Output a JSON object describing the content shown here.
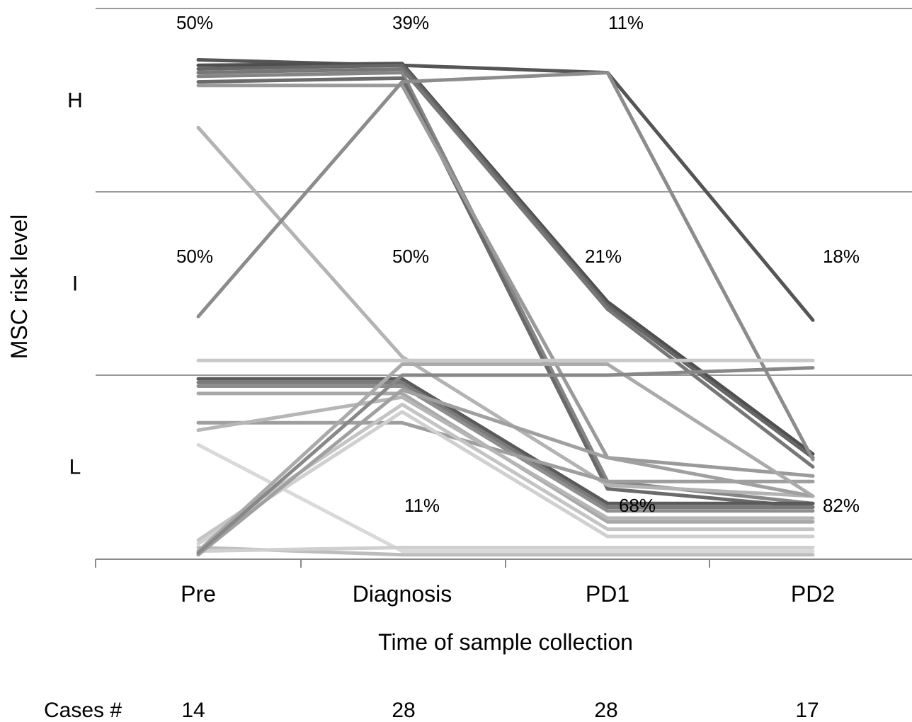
{
  "chart_data": {
    "type": "line",
    "xlabel": "Time of sample collection",
    "ylabel": "MSC risk level",
    "categories": [
      "Pre",
      "Diagnosis",
      "PD1",
      "PD2"
    ],
    "levels": [
      "H",
      "I",
      "L"
    ],
    "grid": true,
    "percent_labels": [
      {
        "category": "Pre",
        "level": "H",
        "text": "50%"
      },
      {
        "category": "Diagnosis",
        "level": "H",
        "text": "39%"
      },
      {
        "category": "PD1",
        "level": "H",
        "text": "11%"
      },
      {
        "category": "Pre",
        "level": "I",
        "text": "50%"
      },
      {
        "category": "Diagnosis",
        "level": "I",
        "text": "50%"
      },
      {
        "category": "PD1",
        "level": "I",
        "text": "21%"
      },
      {
        "category": "PD2",
        "level": "I",
        "text": "18%"
      },
      {
        "category": "Diagnosis",
        "level": "L",
        "text": "11%"
      },
      {
        "category": "PD1",
        "level": "L",
        "text": "68%"
      },
      {
        "category": "PD2",
        "level": "L",
        "text": "82%"
      }
    ],
    "cases_label": "Cases #",
    "cases": [
      14,
      28,
      28,
      17
    ],
    "series": [
      {
        "values": [
          0.28,
          0.31,
          0.35,
          1.7
        ],
        "color": "#555555"
      },
      {
        "values": [
          0.31,
          0.3,
          1.6,
          2.43
        ],
        "color": "#4f4f4f"
      },
      {
        "values": [
          0.33,
          0.31,
          1.62,
          2.45
        ],
        "color": "#666666"
      },
      {
        "values": [
          0.35,
          0.33,
          1.64,
          2.5
        ],
        "color": "#777777"
      },
      {
        "values": [
          0.37,
          0.35,
          2.58,
          2.7
        ],
        "color": "#858585"
      },
      {
        "values": [
          0.4,
          0.38,
          2.62,
          2.72
        ],
        "color": "#6a6a6a"
      },
      {
        "values": [
          0.42,
          0.42,
          2.45,
          2.55
        ],
        "color": "#9a9a9a"
      },
      {
        "values": [
          0.65,
          1.9,
          2.6,
          2.66
        ],
        "color": "#b3b3b3"
      },
      {
        "values": [
          1.68,
          0.4,
          0.35,
          2.46
        ],
        "color": "#8c8c8c"
      },
      {
        "values": [
          1.92,
          1.92,
          1.92,
          1.92
        ],
        "color": "#c8c8c8"
      },
      {
        "values": [
          2.02,
          2.02,
          2.7,
          2.7
        ],
        "color": "#5a5a5a"
      },
      {
        "values": [
          2.04,
          2.04,
          2.72,
          2.72
        ],
        "color": "#7a7a7a"
      },
      {
        "values": [
          2.06,
          2.06,
          2.74,
          2.74
        ],
        "color": "#8e8e8e"
      },
      {
        "values": [
          2.1,
          2.1,
          2.8,
          2.8
        ],
        "color": "#a8a8a8"
      },
      {
        "values": [
          2.26,
          2.26,
          2.58,
          2.58
        ],
        "color": "#9e9e9e"
      },
      {
        "values": [
          2.3,
          2.12,
          2.78,
          2.78
        ],
        "color": "#b6b6b6"
      },
      {
        "values": [
          2.38,
          2.96,
          2.96,
          2.96
        ],
        "color": "#d9d9d9"
      },
      {
        "values": [
          2.9,
          2.16,
          2.84,
          2.84
        ],
        "color": "#c4c4c4"
      },
      {
        "values": [
          2.92,
          2.2,
          2.88,
          2.88
        ],
        "color": "#d0d0d0"
      },
      {
        "values": [
          2.94,
          2.98,
          2.98,
          2.98
        ],
        "color": "#bdbdbd"
      },
      {
        "values": [
          2.96,
          2.94,
          2.94,
          2.94
        ],
        "color": "#cfcfcf"
      },
      {
        "values": [
          2.98,
          2.08,
          2.45,
          2.66
        ],
        "color": "#a0a0a0"
      },
      {
        "values": [
          2.96,
          1.94,
          1.94,
          2.66
        ],
        "color": "#aaaaaa"
      },
      {
        "values": [
          2.97,
          2.0,
          2.0,
          1.96
        ],
        "color": "#888888"
      }
    ]
  }
}
